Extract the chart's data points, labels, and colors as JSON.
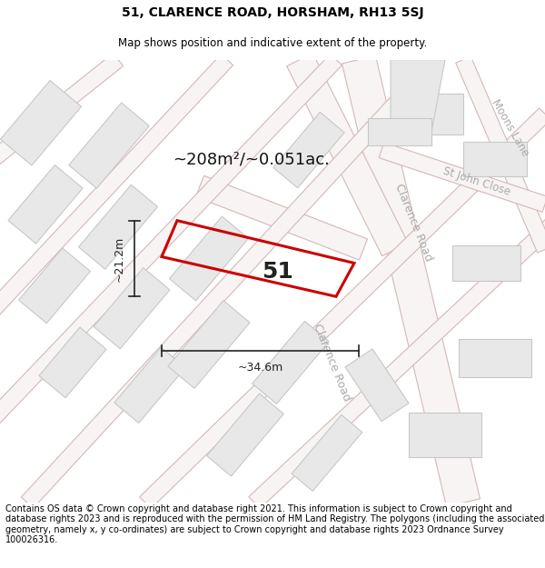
{
  "title_line1": "51, CLARENCE ROAD, HORSHAM, RH13 5SJ",
  "title_line2": "Map shows position and indicative extent of the property.",
  "footer_text": "Contains OS data © Crown copyright and database right 2021. This information is subject to Crown copyright and database rights 2023 and is reproduced with the permission of HM Land Registry. The polygons (including the associated geometry, namely x, y co-ordinates) are subject to Crown copyright and database rights 2023 Ordnance Survey 100026316.",
  "area_label": "~208m²/~0.051ac.",
  "width_label": "~34.6m",
  "height_label": "~21.2m",
  "property_number": "51",
  "bg_color": "#ffffff",
  "map_bg": "#ffffff",
  "road_edge_color": "#d4b8b8",
  "road_fill_color": "#f0e8e8",
  "building_fill": "#e8e8e8",
  "building_edge": "#c8c8c8",
  "highlight_color": "#cc0000",
  "dim_line_color": "#222222",
  "title_fontsize": 10,
  "subtitle_fontsize": 8.5,
  "footer_fontsize": 7.0,
  "road_label_color": "#aaaaaa",
  "area_label_fontsize": 13,
  "number_fontsize": 18,
  "dim_fontsize": 9,
  "road_label_fontsize": 9
}
